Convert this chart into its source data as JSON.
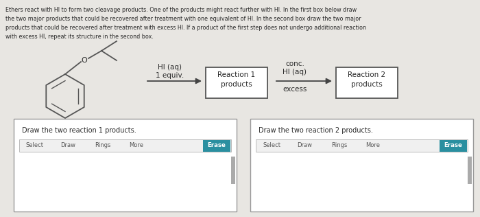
{
  "bg_color": "#d8d5d0",
  "panel_color": "#e8e6e2",
  "text_color": "#2a2a2a",
  "title_text_lines": [
    "Ethers react with HI to form two cleavage products. One of the products might react further with HI. In the first box below draw",
    "the two major products that could be recovered after treatment with one equivalent of HI. In the second box draw the two major",
    "products that could be recovered after treatment with excess HI. If a product of the first step does not undergo additional reaction",
    "with excess HI, repeat its structure in the second box."
  ],
  "hi_aq_label_line1": "HI (aq)",
  "hi_aq_label_line2": "1 equiv.",
  "conc_hi_line1": "conc.",
  "conc_hi_line2": "HI (aq)",
  "excess_label": "excess",
  "box1_label": "Reaction 1\nproducts",
  "box2_label": "Reaction 2\nproducts",
  "draw_box1_title": "Draw the two reaction 1 products.",
  "draw_box2_title": "Draw the two reaction 2 products.",
  "toolbar_items": [
    "Select",
    "Draw",
    "Rings",
    "More"
  ],
  "erase_color": "#2a8fa0",
  "erase_label": "Erase",
  "box_edge_color": "#555555",
  "arrow_color": "#444444",
  "white": "#ffffff",
  "light_gray": "#cccccc",
  "toolbar_bg": "#f0f0f0"
}
